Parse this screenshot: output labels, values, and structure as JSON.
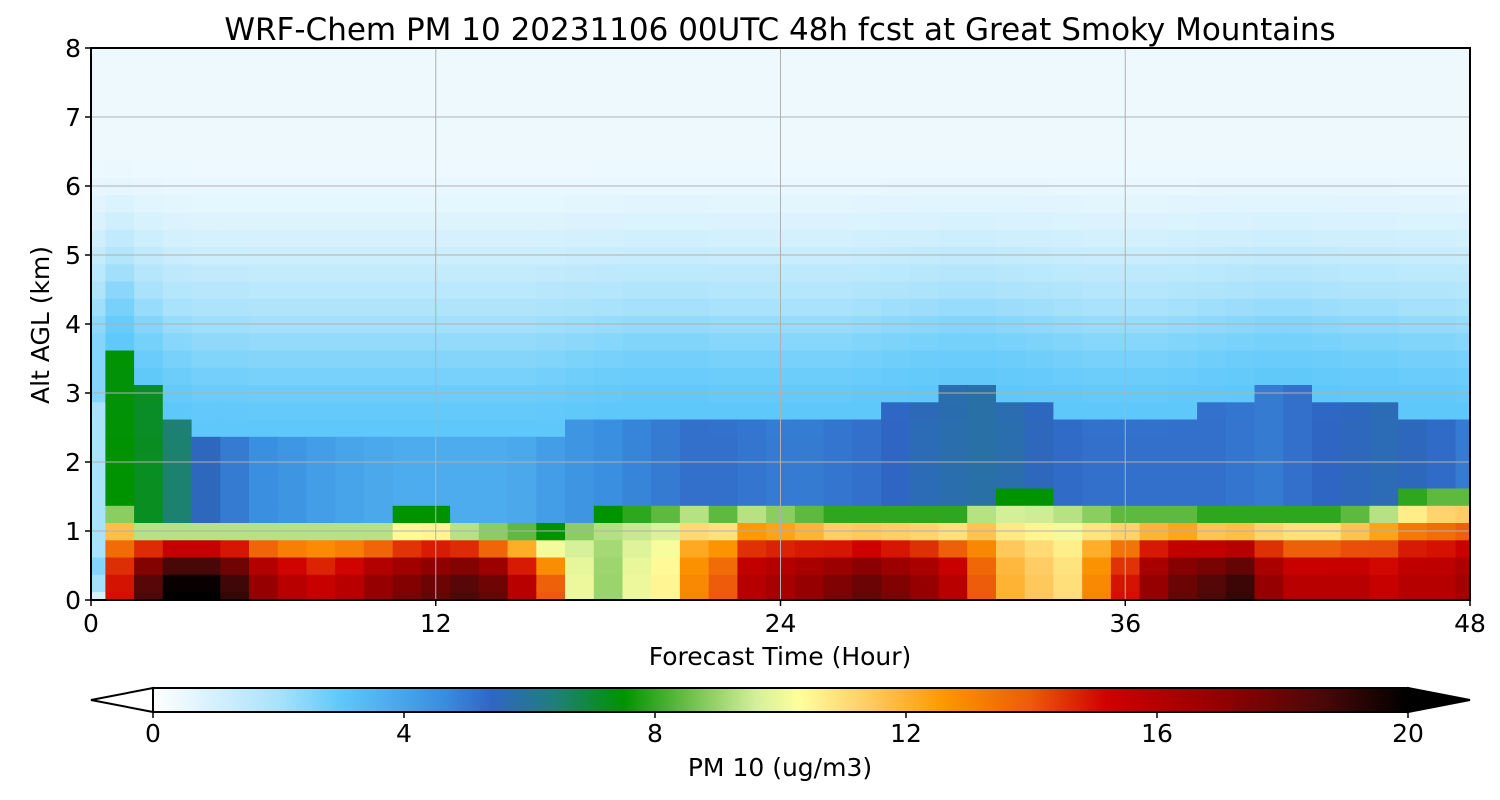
{
  "chart_data": {
    "type": "heatmap",
    "title": "WRF-Chem PM 10  20231106 00UTC 48h fcst at Great Smoky Mountains",
    "xlabel": "Forecast Time (Hour)",
    "ylabel": "Alt AGL (km)",
    "xlim": [
      0,
      48
    ],
    "ylim": [
      0,
      8
    ],
    "xticks": [
      "0",
      "12",
      "24",
      "36",
      "48"
    ],
    "xtick_values": [
      0,
      12,
      24,
      36,
      48
    ],
    "yticks": [
      "0",
      "1",
      "2",
      "3",
      "4",
      "5",
      "6",
      "7",
      "8"
    ],
    "ytick_values": [
      0,
      1,
      2,
      3,
      4,
      5,
      6,
      7,
      8
    ],
    "grid": true,
    "colorbar": {
      "label": "PM 10  (ug/m3)",
      "range": [
        0,
        20
      ],
      "extend": "both",
      "ticks": [
        "0",
        "4",
        "8",
        "12",
        "16",
        "20"
      ],
      "tick_values": [
        0,
        4,
        8,
        12,
        16,
        20
      ],
      "stops": [
        {
          "v": 0,
          "c": "#ffffff"
        },
        {
          "v": 2,
          "c": "#a9e2fb"
        },
        {
          "v": 3,
          "c": "#5ec8fa"
        },
        {
          "v": 4.6,
          "c": "#3a8fe0"
        },
        {
          "v": 5.4,
          "c": "#2f66c4"
        },
        {
          "v": 6.4,
          "c": "#1f7f7a"
        },
        {
          "v": 7.5,
          "c": "#009300"
        },
        {
          "v": 8.6,
          "c": "#73c24e"
        },
        {
          "v": 9.6,
          "c": "#d4ef9a"
        },
        {
          "v": 10.3,
          "c": "#ffff9c"
        },
        {
          "v": 11.3,
          "c": "#ffd06a"
        },
        {
          "v": 12.6,
          "c": "#fd9800"
        },
        {
          "v": 14.0,
          "c": "#ec5a0a"
        },
        {
          "v": 15.2,
          "c": "#cf0000"
        },
        {
          "v": 17.0,
          "c": "#930000"
        },
        {
          "v": 18.6,
          "c": "#4c0808"
        },
        {
          "v": 20,
          "c": "#000000"
        }
      ]
    },
    "hours": [
      0,
      1,
      2,
      3,
      4,
      5,
      6,
      7,
      8,
      9,
      10,
      11,
      12,
      13,
      14,
      15,
      16,
      17,
      18,
      19,
      20,
      21,
      22,
      23,
      24,
      25,
      26,
      27,
      28,
      29,
      30,
      31,
      32,
      33,
      34,
      35,
      36,
      37,
      38,
      39,
      40,
      41,
      42,
      43,
      44,
      45,
      46,
      47,
      48
    ],
    "altitudes_km": [
      0,
      0.25,
      0.5,
      0.75,
      1,
      1.25,
      1.5,
      1.75,
      2,
      2.25,
      2.5,
      2.75,
      3,
      3.25,
      3.5,
      3.75,
      4,
      4.25,
      4.5,
      4.75,
      5,
      5.25,
      5.5,
      5.75,
      6,
      6.25,
      6.5,
      6.75,
      7,
      7.25,
      7.5,
      7.75,
      8
    ],
    "surface_pm10": [
      1,
      15,
      18.5,
      20,
      20,
      19,
      17,
      16,
      15.5,
      16,
      17,
      17.5,
      18,
      18.5,
      18,
      16,
      14,
      10,
      9,
      10,
      10.5,
      13,
      14,
      16,
      16.5,
      17,
      17.5,
      18,
      17.5,
      17,
      16,
      14,
      12,
      11.5,
      11,
      13,
      15,
      17,
      18,
      18.5,
      19,
      17,
      16,
      16,
      16,
      15.5,
      16,
      16,
      16.5
    ],
    "layer_top_km": [
      0.5,
      1.2,
      1.0,
      1.0,
      1.0,
      1.0,
      1.0,
      1.0,
      1.0,
      1.0,
      1.0,
      1.05,
      1.05,
      1.0,
      0.95,
      0.9,
      0.8,
      0.95,
      1.05,
      1.1,
      1.15,
      1.25,
      1.15,
      1.25,
      1.2,
      1.15,
      1.1,
      1.1,
      1.1,
      1.1,
      1.1,
      1.25,
      1.3,
      1.3,
      1.25,
      1.2,
      1.15,
      1.15,
      1.15,
      1.1,
      1.1,
      1.1,
      1.1,
      1.1,
      1.15,
      1.25,
      1.35,
      1.4,
      1.4
    ],
    "aloft_pm10": [
      2,
      7.5,
      7.2,
      6.5,
      5.5,
      5.0,
      4.6,
      4.4,
      4.2,
      4.0,
      3.9,
      3.8,
      3.8,
      3.8,
      3.8,
      3.9,
      4.2,
      4.4,
      4.6,
      4.8,
      5.0,
      5.2,
      5.2,
      5.1,
      5.0,
      5.0,
      5.1,
      5.2,
      5.4,
      5.6,
      5.7,
      5.8,
      5.7,
      5.5,
      5.3,
      5.2,
      5.2,
      5.2,
      5.2,
      5.2,
      5.1,
      5.0,
      5.2,
      5.4,
      5.5,
      5.6,
      5.5,
      5.3,
      5.0
    ],
    "aloft_top_km": [
      2.8,
      3.6,
      3.0,
      2.6,
      2.4,
      2.4,
      2.3,
      2.3,
      2.3,
      2.3,
      2.3,
      2.3,
      2.3,
      2.3,
      2.3,
      2.3,
      2.4,
      2.5,
      2.6,
      2.7,
      2.7,
      2.7,
      2.6,
      2.6,
      2.6,
      2.6,
      2.6,
      2.7,
      2.8,
      2.9,
      3.0,
      3.0,
      2.9,
      2.8,
      2.7,
      2.6,
      2.6,
      2.6,
      2.7,
      2.8,
      2.9,
      3.0,
      3.0,
      2.9,
      2.8,
      2.8,
      2.7,
      2.7,
      2.6
    ]
  }
}
